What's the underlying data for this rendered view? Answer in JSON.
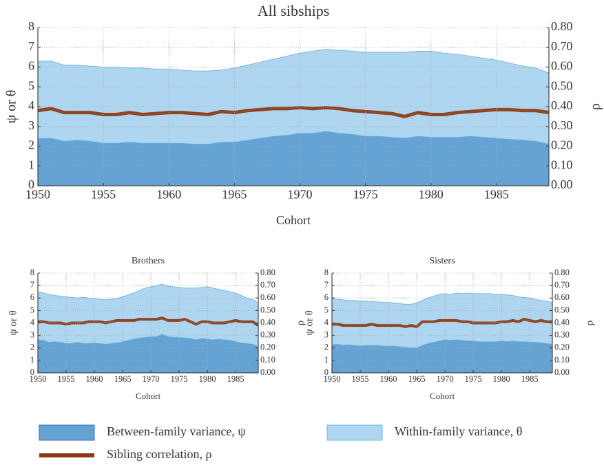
{
  "chart_data": [
    {
      "type": "area",
      "stacked": true,
      "title": "All sibships",
      "xlabel": "Cohort",
      "ylabel": "ψ or θ",
      "y2label": "ρ",
      "grid": true,
      "x": [
        1950,
        1951,
        1952,
        1953,
        1954,
        1955,
        1956,
        1957,
        1958,
        1959,
        1960,
        1961,
        1962,
        1963,
        1964,
        1965,
        1966,
        1967,
        1968,
        1969,
        1970,
        1971,
        1972,
        1973,
        1974,
        1975,
        1976,
        1977,
        1978,
        1979,
        1980,
        1981,
        1982,
        1983,
        1984,
        1985,
        1986,
        1987,
        1988,
        1989
      ],
      "xlim": [
        1950,
        1989
      ],
      "xticks": [
        1950,
        1955,
        1960,
        1965,
        1970,
        1975,
        1980,
        1985
      ],
      "ylim": [
        0,
        8
      ],
      "yticks": [
        0,
        1,
        2,
        3,
        4,
        5,
        6,
        7,
        8
      ],
      "y2lim": [
        0,
        0.8
      ],
      "y2ticks": [
        {
          "value": 0,
          "label": "0.00"
        },
        {
          "value": 0.1,
          "label": "0.10"
        },
        {
          "value": 0.2,
          "label": "0.20"
        },
        {
          "value": 0.3,
          "label": "0.30"
        },
        {
          "value": 0.4,
          "label": "0.40"
        },
        {
          "value": 0.5,
          "label": "0.50"
        },
        {
          "value": 0.6,
          "label": "0.60"
        },
        {
          "value": 0.7,
          "label": "0.70"
        },
        {
          "value": 0.8,
          "label": "0.80"
        }
      ],
      "series": [
        {
          "name": "Between-family variance, ψ",
          "color": "#64a3d4",
          "stroke": "#2f72b0",
          "values": [
            2.4,
            2.4,
            2.25,
            2.3,
            2.25,
            2.15,
            2.15,
            2.2,
            2.15,
            2.15,
            2.15,
            2.15,
            2.1,
            2.1,
            2.2,
            2.2,
            2.3,
            2.4,
            2.5,
            2.55,
            2.65,
            2.65,
            2.75,
            2.65,
            2.6,
            2.5,
            2.5,
            2.45,
            2.4,
            2.5,
            2.45,
            2.45,
            2.45,
            2.5,
            2.45,
            2.4,
            2.35,
            2.3,
            2.25,
            2.1
          ]
        },
        {
          "name": "Within-family variance, θ",
          "color": "#aed6f1",
          "stroke": "#72b6e2",
          "values": [
            3.9,
            3.9,
            3.85,
            3.8,
            3.8,
            3.85,
            3.85,
            3.75,
            3.8,
            3.75,
            3.75,
            3.7,
            3.7,
            3.7,
            3.65,
            3.75,
            3.8,
            3.85,
            3.9,
            4.0,
            4.05,
            4.15,
            4.15,
            4.2,
            4.2,
            4.25,
            4.25,
            4.3,
            4.35,
            4.3,
            4.35,
            4.25,
            4.2,
            4.05,
            4.0,
            3.95,
            3.85,
            3.75,
            3.7,
            3.6
          ]
        },
        {
          "name": "Sibling correlation, ρ",
          "type": "line",
          "axis": "y2",
          "color": "#8b3a14",
          "values": [
            0.38,
            0.39,
            0.37,
            0.37,
            0.37,
            0.36,
            0.36,
            0.37,
            0.36,
            0.365,
            0.37,
            0.37,
            0.365,
            0.36,
            0.375,
            0.37,
            0.38,
            0.385,
            0.39,
            0.39,
            0.395,
            0.39,
            0.395,
            0.39,
            0.38,
            0.375,
            0.37,
            0.365,
            0.35,
            0.37,
            0.36,
            0.36,
            0.37,
            0.375,
            0.38,
            0.385,
            0.385,
            0.38,
            0.38,
            0.37
          ]
        }
      ]
    },
    {
      "type": "area",
      "stacked": true,
      "title": "Brothers",
      "xlabel": "Cohort",
      "ylabel": "ψ or θ",
      "y2label": "ρ",
      "grid": true,
      "x": [
        1950,
        1951,
        1952,
        1953,
        1954,
        1955,
        1956,
        1957,
        1958,
        1959,
        1960,
        1961,
        1962,
        1963,
        1964,
        1965,
        1966,
        1967,
        1968,
        1969,
        1970,
        1971,
        1972,
        1973,
        1974,
        1975,
        1976,
        1977,
        1978,
        1979,
        1980,
        1981,
        1982,
        1983,
        1984,
        1985,
        1986,
        1987,
        1988,
        1989
      ],
      "xlim": [
        1950,
        1989
      ],
      "xticks": [
        1950,
        1955,
        1960,
        1965,
        1970,
        1975,
        1980,
        1985
      ],
      "ylim": [
        0,
        8
      ],
      "yticks": [
        0,
        1,
        2,
        3,
        4,
        5,
        6,
        7,
        8
      ],
      "y2lim": [
        0,
        0.8
      ],
      "y2ticks": [
        {
          "value": 0,
          "label": "0.00"
        },
        {
          "value": 0.1,
          "label": "0.10"
        },
        {
          "value": 0.2,
          "label": "0.20"
        },
        {
          "value": 0.3,
          "label": "0.30"
        },
        {
          "value": 0.4,
          "label": "0.40"
        },
        {
          "value": 0.5,
          "label": "0.50"
        },
        {
          "value": 0.6,
          "label": "0.60"
        },
        {
          "value": 0.7,
          "label": "0.70"
        },
        {
          "value": 0.8,
          "label": "0.80"
        }
      ],
      "series": [
        {
          "color": "#64a3d4",
          "stroke": "#2f72b0",
          "values": [
            2.65,
            2.6,
            2.45,
            2.5,
            2.45,
            2.35,
            2.35,
            2.45,
            2.35,
            2.35,
            2.4,
            2.35,
            2.3,
            2.35,
            2.4,
            2.5,
            2.6,
            2.7,
            2.8,
            2.85,
            2.9,
            2.9,
            3.1,
            2.9,
            2.85,
            2.85,
            2.8,
            2.75,
            2.65,
            2.75,
            2.7,
            2.65,
            2.7,
            2.65,
            2.6,
            2.5,
            2.4,
            2.35,
            2.3,
            2.1
          ]
        },
        {
          "color": "#aed6f1",
          "stroke": "#72b6e2",
          "values": [
            3.85,
            3.8,
            3.85,
            3.7,
            3.7,
            3.75,
            3.7,
            3.55,
            3.7,
            3.65,
            3.55,
            3.55,
            3.55,
            3.55,
            3.55,
            3.6,
            3.65,
            3.7,
            3.8,
            3.95,
            4.0,
            4.1,
            4.0,
            4.05,
            4.05,
            4.0,
            4.0,
            4.05,
            4.15,
            4.1,
            4.2,
            4.15,
            4.0,
            3.95,
            3.9,
            3.9,
            3.8,
            3.65,
            3.6,
            3.5
          ]
        },
        {
          "type": "line",
          "axis": "y2",
          "color": "#8b3a14",
          "values": [
            0.41,
            0.41,
            0.4,
            0.4,
            0.4,
            0.39,
            0.4,
            0.4,
            0.4,
            0.41,
            0.41,
            0.41,
            0.4,
            0.41,
            0.42,
            0.42,
            0.42,
            0.42,
            0.43,
            0.43,
            0.43,
            0.43,
            0.44,
            0.42,
            0.42,
            0.42,
            0.43,
            0.41,
            0.39,
            0.41,
            0.41,
            0.4,
            0.4,
            0.4,
            0.41,
            0.42,
            0.41,
            0.41,
            0.41,
            0.38
          ]
        }
      ]
    },
    {
      "type": "area",
      "stacked": true,
      "title": "Sisters",
      "xlabel": "Cohort",
      "ylabel": "ψ or θ",
      "y2label": "ρ",
      "grid": true,
      "x": [
        1950,
        1951,
        1952,
        1953,
        1954,
        1955,
        1956,
        1957,
        1958,
        1959,
        1960,
        1961,
        1962,
        1963,
        1964,
        1965,
        1966,
        1967,
        1968,
        1969,
        1970,
        1971,
        1972,
        1973,
        1974,
        1975,
        1976,
        1977,
        1978,
        1979,
        1980,
        1981,
        1982,
        1983,
        1984,
        1985,
        1986,
        1987,
        1988,
        1989
      ],
      "xlim": [
        1950,
        1989
      ],
      "xticks": [
        1950,
        1955,
        1960,
        1965,
        1970,
        1975,
        1980,
        1985
      ],
      "ylim": [
        0,
        8
      ],
      "yticks": [
        0,
        1,
        2,
        3,
        4,
        5,
        6,
        7,
        8
      ],
      "y2lim": [
        0,
        0.8
      ],
      "y2ticks": [
        {
          "value": 0,
          "label": "0.00"
        },
        {
          "value": 0.1,
          "label": "0.10"
        },
        {
          "value": 0.2,
          "label": "0.20"
        },
        {
          "value": 0.3,
          "label": "0.30"
        },
        {
          "value": 0.4,
          "label": "0.40"
        },
        {
          "value": 0.5,
          "label": "0.50"
        },
        {
          "value": 0.6,
          "label": "0.60"
        },
        {
          "value": 0.7,
          "label": "0.70"
        },
        {
          "value": 0.8,
          "label": "0.80"
        }
      ],
      "series": [
        {
          "color": "#64a3d4",
          "stroke": "#2f72b0",
          "values": [
            2.25,
            2.3,
            2.2,
            2.25,
            2.2,
            2.15,
            2.2,
            2.2,
            2.2,
            2.15,
            2.15,
            2.15,
            2.1,
            2.05,
            2.0,
            2.0,
            2.2,
            2.35,
            2.45,
            2.55,
            2.65,
            2.6,
            2.65,
            2.6,
            2.55,
            2.55,
            2.5,
            2.5,
            2.5,
            2.5,
            2.55,
            2.5,
            2.55,
            2.5,
            2.5,
            2.45,
            2.45,
            2.4,
            2.35,
            2.3
          ]
        },
        {
          "color": "#aed6f1",
          "stroke": "#72b6e2",
          "values": [
            3.7,
            3.6,
            3.65,
            3.55,
            3.6,
            3.6,
            3.55,
            3.5,
            3.5,
            3.5,
            3.5,
            3.45,
            3.45,
            3.45,
            3.5,
            3.6,
            3.6,
            3.65,
            3.7,
            3.75,
            3.7,
            3.7,
            3.75,
            3.75,
            3.85,
            3.8,
            3.85,
            3.85,
            3.85,
            3.8,
            3.75,
            3.75,
            3.65,
            3.6,
            3.55,
            3.55,
            3.45,
            3.4,
            3.4,
            3.3
          ]
        },
        {
          "type": "line",
          "axis": "y2",
          "color": "#8b3a14",
          "values": [
            0.39,
            0.39,
            0.38,
            0.38,
            0.38,
            0.38,
            0.38,
            0.39,
            0.38,
            0.38,
            0.38,
            0.38,
            0.38,
            0.37,
            0.38,
            0.37,
            0.41,
            0.41,
            0.41,
            0.42,
            0.42,
            0.42,
            0.42,
            0.41,
            0.41,
            0.4,
            0.4,
            0.4,
            0.4,
            0.4,
            0.41,
            0.41,
            0.42,
            0.41,
            0.43,
            0.42,
            0.41,
            0.42,
            0.41,
            0.41
          ]
        }
      ]
    }
  ]
}
